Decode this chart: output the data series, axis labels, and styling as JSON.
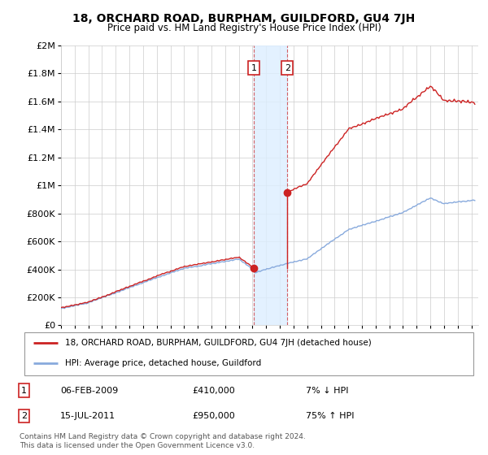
{
  "title": "18, ORCHARD ROAD, BURPHAM, GUILDFORD, GU4 7JH",
  "subtitle": "Price paid vs. HM Land Registry's House Price Index (HPI)",
  "red_label": "18, ORCHARD ROAD, BURPHAM, GUILDFORD, GU4 7JH (detached house)",
  "blue_label": "HPI: Average price, detached house, Guildford",
  "transaction1_date": "06-FEB-2009",
  "transaction1_price": "£410,000",
  "transaction1_hpi": "7% ↓ HPI",
  "transaction2_date": "15-JUL-2011",
  "transaction2_price": "£950,000",
  "transaction2_hpi": "75% ↑ HPI",
  "footnote": "Contains HM Land Registry data © Crown copyright and database right 2024.\nThis data is licensed under the Open Government Licence v3.0.",
  "transaction1_x": 2009.1,
  "transaction1_y": 410000,
  "transaction2_x": 2011.55,
  "transaction2_y": 950000,
  "shade_x1": 2009.1,
  "shade_x2": 2011.55,
  "ylim": [
    0,
    2000000
  ],
  "xlim": [
    1995.0,
    2025.5
  ],
  "bg_color": "#ffffff",
  "grid_color": "#cccccc",
  "red_color": "#cc2222",
  "blue_color": "#88aadd",
  "shade_color": "#ddeeff"
}
